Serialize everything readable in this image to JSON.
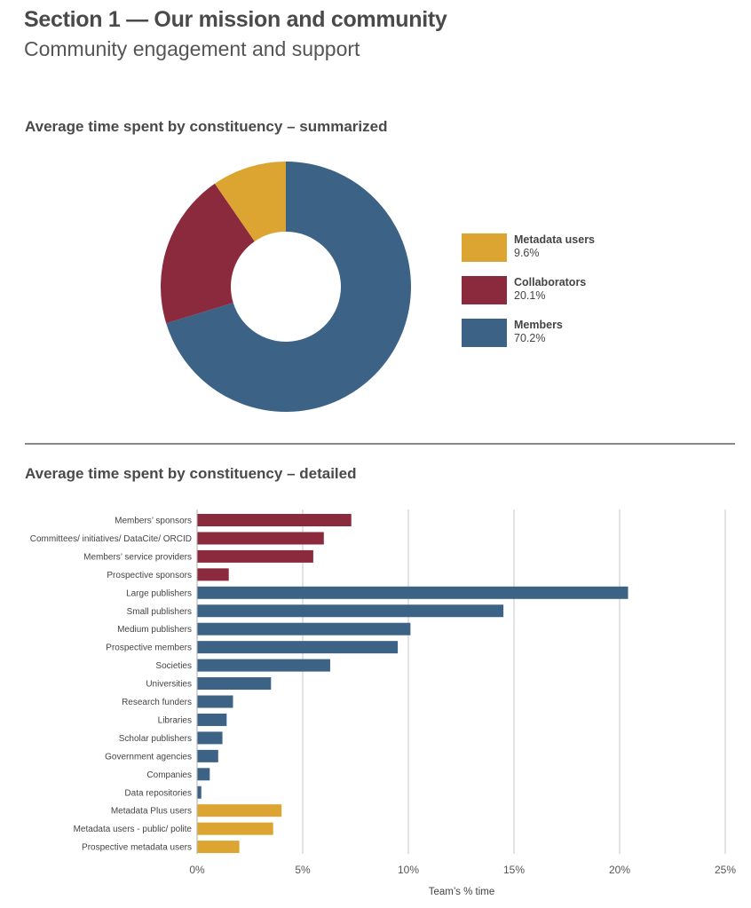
{
  "header": {
    "title": "Section 1 — Our mission and community",
    "subtitle": "Community engagement and support"
  },
  "chart_data": [
    {
      "type": "pie",
      "title": "Average time spent by constituency – summarized",
      "donut": true,
      "slices": [
        {
          "label": "Members",
          "value": 70.2,
          "value_label": "70.2%",
          "color": "#3c6285"
        },
        {
          "label": "Collaborators",
          "value": 20.1,
          "value_label": "20.1%",
          "color": "#8a2a3c"
        },
        {
          "label": "Metadata users",
          "value": 9.6,
          "value_label": "9.6%",
          "color": "#dca431"
        }
      ],
      "legend_order": [
        2,
        1,
        0
      ],
      "legend": "right"
    },
    {
      "type": "bar",
      "orientation": "horizontal",
      "title": "Average time spent by constituency – detailed",
      "xlabel": "Team’s % time",
      "ylabel": "",
      "xlim": [
        0,
        25
      ],
      "xticks": [
        "0%",
        "5%",
        "10%",
        "15%",
        "20%",
        "25%"
      ],
      "grid": true,
      "categories": [
        "Members’ sponsors",
        "Committees/ initiatives/ DataCite/ ORCID",
        "Members’ service providers",
        "Prospective sponsors",
        "Large publishers",
        "Small publishers",
        "Medium publishers",
        "Prospective members",
        "Societies",
        "Universities",
        "Research funders",
        "Libraries",
        "Scholar publishers",
        "Government agencies",
        "Companies",
        "Data repositories",
        "Metadata Plus users",
        "Metadata users - public/ polite",
        "Prospective metadata users"
      ],
      "values": [
        7.3,
        6.0,
        5.5,
        1.5,
        20.4,
        14.5,
        10.1,
        9.5,
        6.3,
        3.5,
        1.7,
        1.4,
        1.2,
        1.0,
        0.6,
        0.2,
        4.0,
        3.6,
        2.0
      ],
      "groups": [
        "Collaborators",
        "Collaborators",
        "Collaborators",
        "Collaborators",
        "Members",
        "Members",
        "Members",
        "Members",
        "Members",
        "Members",
        "Members",
        "Members",
        "Members",
        "Members",
        "Members",
        "Members",
        "Metadata users",
        "Metadata users",
        "Metadata users"
      ],
      "group_colors": {
        "Collaborators": "#8a2a3c",
        "Members": "#3c6285",
        "Metadata users": "#dca431"
      }
    }
  ]
}
